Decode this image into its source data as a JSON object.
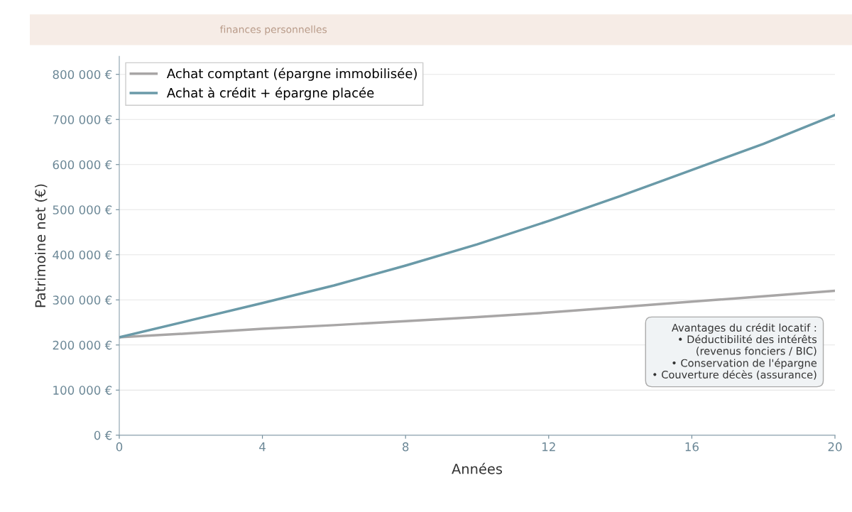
{
  "chart_data": {
    "type": "line",
    "subtitle": "finances personnelles",
    "xlabel": "Années",
    "ylabel": "Patrimoine net (€)",
    "x": [
      0,
      2,
      4,
      6,
      8,
      10,
      12,
      14,
      16,
      18,
      20
    ],
    "series": [
      {
        "name": "Achat comptant (épargne immobilisée)",
        "color": "#a8a6a6",
        "values": [
          217000,
          226000,
          236000,
          244000,
          253000,
          262000,
          272000,
          284000,
          296000,
          308000,
          320000
        ]
      },
      {
        "name": "Achat à crédit + épargne placée",
        "color": "#6a9aa8",
        "values": [
          217000,
          255000,
          293000,
          332000,
          376000,
          423000,
          475000,
          530000,
          588000,
          646000,
          710000
        ]
      }
    ],
    "xlim": [
      0,
      20
    ],
    "xticks": [
      0,
      4,
      8,
      12,
      16,
      20
    ],
    "ylim": [
      0,
      840000
    ],
    "yticks": [
      {
        "value": 0,
        "label": "0 €"
      },
      {
        "value": 100000,
        "label": "100 000 €"
      },
      {
        "value": 200000,
        "label": "200 000 €"
      },
      {
        "value": 300000,
        "label": "300 000 €"
      },
      {
        "value": 400000,
        "label": "400 000 €"
      },
      {
        "value": 500000,
        "label": "500 000 €"
      },
      {
        "value": 600000,
        "label": "600 000 €"
      },
      {
        "value": 700000,
        "label": "700 000 €"
      },
      {
        "value": 800000,
        "label": "800 000 €"
      }
    ],
    "grid": "y",
    "legend": "top left",
    "marker": "none",
    "line_style": "solid",
    "annotations": [
      "Avantages du crédit locatif :\n• Déductibilité des intérêts\n(revenus fonciers / BIC)\n• Conservation de l'épargne\n• Couverture décès (assurance)"
    ]
  }
}
